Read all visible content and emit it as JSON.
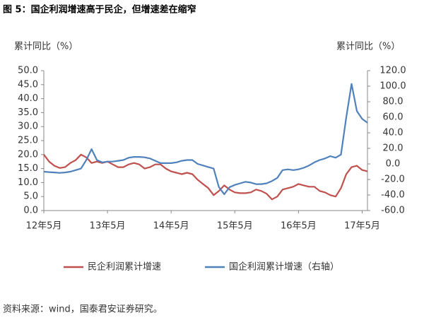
{
  "chart_data": {
    "type": "line",
    "title": "图 5：国企利润增速高于民企，但增速差在缩窄",
    "ylabel": "累计同比（%）",
    "y2label": "累计同比（%）",
    "source": "资料来源：wind，国泰君安证券研究。",
    "categories": [
      "12年5月",
      null,
      null,
      null,
      null,
      null,
      null,
      null,
      null,
      null,
      null,
      null,
      "13年5月",
      null,
      null,
      null,
      null,
      null,
      null,
      null,
      null,
      null,
      null,
      null,
      "14年5月",
      null,
      null,
      null,
      null,
      null,
      null,
      null,
      null,
      null,
      null,
      null,
      "15年5月",
      null,
      null,
      null,
      null,
      null,
      null,
      null,
      null,
      null,
      null,
      null,
      "16年5月",
      null,
      null,
      null,
      null,
      null,
      null,
      null,
      null,
      null,
      null,
      null,
      "17年5月",
      null
    ],
    "series": [
      {
        "name": "民企利润累计增速",
        "color": "#c0504d",
        "values": [
          20,
          17.5,
          16,
          15.2,
          15.5,
          17,
          18,
          20,
          19,
          17,
          17.5,
          17,
          17.5,
          16.5,
          15.5,
          15.5,
          16.5,
          17,
          16.5,
          15,
          15.5,
          16.5,
          16.5,
          15,
          14,
          13.5,
          13,
          13.5,
          13,
          11,
          9.5,
          8,
          5.5,
          7,
          9,
          7.5,
          6.5,
          6.2,
          6.2,
          6.5,
          7.5,
          7,
          6,
          4,
          5,
          7.5,
          8,
          8.5,
          9.5,
          9,
          8.5,
          8.5,
          7,
          6.5,
          5.5,
          5,
          8,
          13,
          15.5,
          16,
          14.5,
          14
        ]
      },
      {
        "name": "国企利润累计增速（右轴）",
        "color": "#4f81bd",
        "axis": "y2",
        "values": [
          -10,
          -10.5,
          -11,
          -11.5,
          -11,
          -10,
          -8,
          -6,
          5,
          19,
          5,
          2,
          3,
          3,
          4,
          5,
          8,
          9,
          9,
          8.5,
          7,
          4,
          1,
          1,
          1,
          2,
          4,
          5,
          5,
          0,
          -2,
          -4,
          -6,
          -30,
          -39,
          -30,
          -27,
          -25,
          -23,
          -24,
          -26,
          -26,
          -25,
          -22,
          -18,
          -8,
          -7,
          -8,
          -7,
          -5,
          -2,
          2,
          5,
          7,
          10,
          8,
          12,
          60,
          103,
          68,
          58,
          53
        ]
      }
    ],
    "ylim": [
      0,
      50
    ],
    "yticks": [
      {
        "value": 0,
        "label": "0.0"
      },
      {
        "value": 5,
        "label": "5.0"
      },
      {
        "value": 10,
        "label": "10.0"
      },
      {
        "value": 15,
        "label": "15.0"
      },
      {
        "value": 20,
        "label": "20.0"
      },
      {
        "value": 25,
        "label": "25.0"
      },
      {
        "value": 30,
        "label": "30.0"
      },
      {
        "value": 35,
        "label": "35.0"
      },
      {
        "value": 40,
        "label": "40.0"
      },
      {
        "value": 45,
        "label": "45.0"
      },
      {
        "value": 50,
        "label": "50.0"
      }
    ],
    "y2lim": [
      -60,
      120
    ],
    "y2ticks": [
      {
        "value": -60,
        "label": "-60.0"
      },
      {
        "value": -40,
        "label": "-40.0"
      },
      {
        "value": -20,
        "label": "-20.0"
      },
      {
        "value": 0,
        "label": "0.0"
      },
      {
        "value": 20,
        "label": "20.0"
      },
      {
        "value": 40,
        "label": "40.0"
      },
      {
        "value": 60,
        "label": "60.0"
      },
      {
        "value": 80,
        "label": "80.0"
      },
      {
        "value": 100,
        "label": "100.0"
      },
      {
        "value": 120,
        "label": "120.0"
      }
    ]
  }
}
